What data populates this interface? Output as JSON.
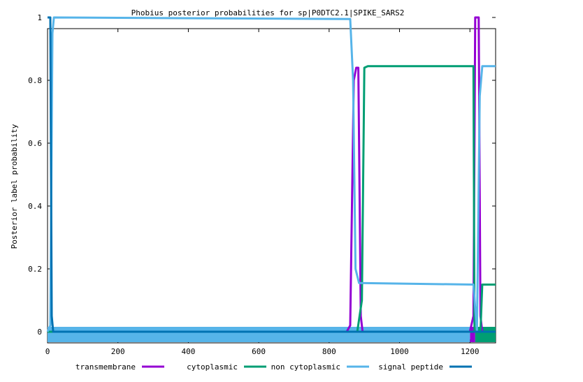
{
  "chart_data": {
    "type": "line",
    "title": "Phobius posterior probabilities for sp|P0DTC2.1|SPIKE_SARS2",
    "xlabel": "",
    "ylabel": "Posterior label probability",
    "xlim": [
      0,
      1273
    ],
    "ylim": [
      0,
      1
    ],
    "x_ticks": [
      0,
      200,
      400,
      600,
      800,
      1000,
      1200
    ],
    "y_ticks": [
      0,
      0.2,
      0.4,
      0.6,
      0.8,
      1
    ],
    "y_tick_labels": [
      "0",
      "0.2",
      "0.4",
      "0.6",
      "0.8",
      "1"
    ],
    "grid": false,
    "legend_position": "bottom",
    "series": [
      {
        "name": "transmembrane",
        "color": "#9400d3",
        "points": [
          [
            0,
            0
          ],
          [
            850,
            0
          ],
          [
            860,
            0.02
          ],
          [
            870,
            0.8
          ],
          [
            877,
            0.84
          ],
          [
            883,
            0.84
          ],
          [
            890,
            0.05
          ],
          [
            895,
            0
          ],
          [
            1200,
            0
          ],
          [
            1210,
            0.05
          ],
          [
            1215,
            1
          ],
          [
            1225,
            1
          ],
          [
            1230,
            0.05
          ],
          [
            1235,
            0
          ],
          [
            1273,
            0
          ]
        ]
      },
      {
        "name": "cytoplasmic",
        "color": "#009e73",
        "points": [
          [
            0,
            0
          ],
          [
            880,
            0
          ],
          [
            893,
            0.1
          ],
          [
            900,
            0.84
          ],
          [
            910,
            0.845
          ],
          [
            1210,
            0.845
          ],
          [
            1213,
            0
          ],
          [
            1230,
            0
          ],
          [
            1235,
            0.15
          ],
          [
            1273,
            0.15
          ]
        ]
      },
      {
        "name": "non cytoplasmic",
        "color": "#56b4e9",
        "points": [
          [
            0,
            0
          ],
          [
            8,
            0.02
          ],
          [
            14,
            0.95
          ],
          [
            18,
            1
          ],
          [
            860,
            0.995
          ],
          [
            868,
            0.8
          ],
          [
            875,
            0.2
          ],
          [
            885,
            0.155
          ],
          [
            1210,
            0.15
          ],
          [
            1220,
            0
          ],
          [
            1228,
            0.75
          ],
          [
            1235,
            0.845
          ],
          [
            1273,
            0.845
          ]
        ]
      },
      {
        "name": "signal peptide",
        "color": "#0072b2",
        "points": [
          [
            0,
            1
          ],
          [
            8,
            1
          ],
          [
            12,
            0.05
          ],
          [
            16,
            0
          ],
          [
            1273,
            0
          ]
        ]
      }
    ],
    "annotations": [
      {
        "name": "transmembrane",
        "x_start": 1200,
        "x_end": 1215,
        "color": "#9400d3"
      },
      {
        "name": "cytoplasmic",
        "x_start": 1215,
        "x_end": 1273,
        "color": "#009e73"
      },
      {
        "name": "non cytoplasmic",
        "x_start": 0,
        "x_end": 1200,
        "color": "#56b4e9"
      }
    ]
  }
}
